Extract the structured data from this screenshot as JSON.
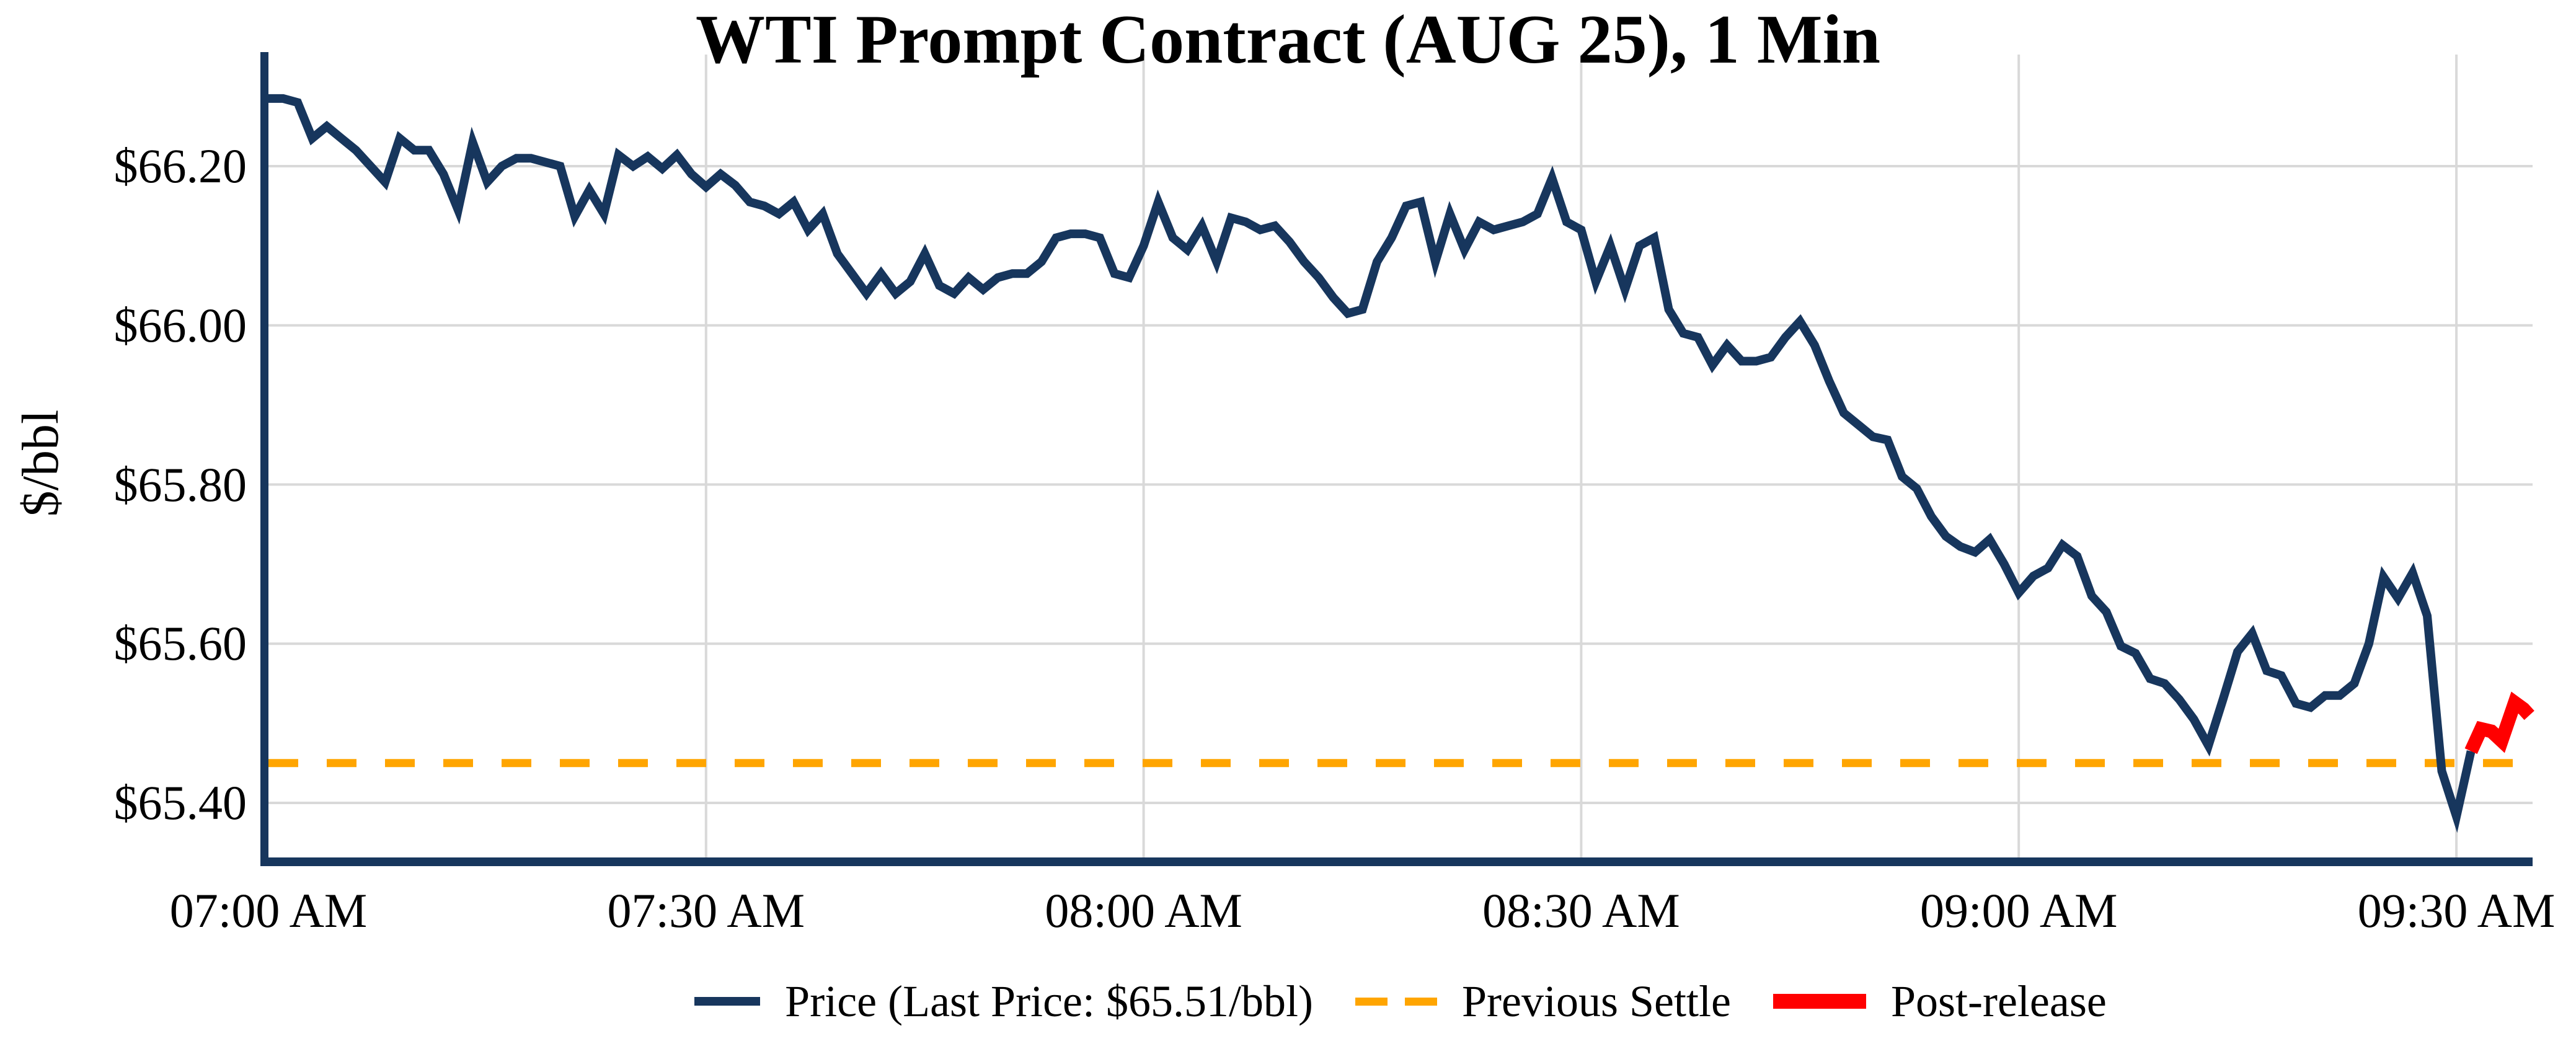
{
  "chart_data": {
    "type": "line",
    "title": "WTI Prompt Contract (AUG 25), 1 Min",
    "ylabel": "$/bbl",
    "grid": true,
    "legend_position": "bottom-center",
    "x_axis": {
      "start": "07:00 AM",
      "end": "09:35 AM",
      "minutes_per_point": 1,
      "ticks": [
        {
          "minute": 0,
          "label": "07:00 AM"
        },
        {
          "minute": 30,
          "label": "07:30 AM"
        },
        {
          "minute": 60,
          "label": "08:00 AM"
        },
        {
          "minute": 90,
          "label": "08:30 AM"
        },
        {
          "minute": 120,
          "label": "09:00 AM"
        },
        {
          "minute": 150,
          "label": "09:30 AM"
        }
      ]
    },
    "y_axis": {
      "range": [
        65.32,
        66.31
      ],
      "ticks": [
        {
          "value": 66.2,
          "label": "$66.20"
        },
        {
          "value": 66.0,
          "label": "$66.00"
        },
        {
          "value": 65.8,
          "label": "$65.80"
        },
        {
          "value": 65.6,
          "label": "$65.60"
        },
        {
          "value": 65.4,
          "label": "$65.40"
        }
      ]
    },
    "series": [
      {
        "name": "Price (Last Price: $65.51/bbl)",
        "type": "line",
        "line_style": "solid",
        "color": "#17365d",
        "start": "07:00 AM",
        "step_minutes": 1,
        "values": [
          66.285,
          66.285,
          66.28,
          66.235,
          66.25,
          66.235,
          66.22,
          66.2,
          66.18,
          66.235,
          66.22,
          66.22,
          66.19,
          66.145,
          66.23,
          66.18,
          66.2,
          66.21,
          66.21,
          66.205,
          66.2,
          66.137,
          66.17,
          66.14,
          66.214,
          66.2,
          66.212,
          66.197,
          66.214,
          66.19,
          66.174,
          66.19,
          66.176,
          66.155,
          66.15,
          66.14,
          66.155,
          66.12,
          66.14,
          66.09,
          66.065,
          66.04,
          66.065,
          66.04,
          66.055,
          66.09,
          66.05,
          66.04,
          66.06,
          66.045,
          66.06,
          66.065,
          66.065,
          66.08,
          66.11,
          66.115,
          66.115,
          66.11,
          66.065,
          66.06,
          66.1,
          66.155,
          66.11,
          66.095,
          66.125,
          66.08,
          66.135,
          66.13,
          66.12,
          66.125,
          66.105,
          66.08,
          66.06,
          66.035,
          66.015,
          66.02,
          66.08,
          66.11,
          66.15,
          66.155,
          66.08,
          66.14,
          66.095,
          66.13,
          66.12,
          66.125,
          66.13,
          66.14,
          66.185,
          66.13,
          66.12,
          66.055,
          66.1,
          66.045,
          66.1,
          66.11,
          66.02,
          65.99,
          65.985,
          65.95,
          65.975,
          65.955,
          65.955,
          65.96,
          65.985,
          66.005,
          65.975,
          65.93,
          65.89,
          65.875,
          65.86,
          65.856,
          65.81,
          65.795,
          65.76,
          65.735,
          65.722,
          65.715,
          65.731,
          65.7,
          65.664,
          65.685,
          65.695,
          65.724,
          65.71,
          65.66,
          65.64,
          65.597,
          65.588,
          65.556,
          65.55,
          65.53,
          65.505,
          65.472,
          65.53,
          65.59,
          65.613,
          65.566,
          65.56,
          65.525,
          65.52,
          65.535,
          65.535,
          65.55,
          65.6,
          65.684,
          65.657,
          65.689,
          65.635,
          65.44,
          65.383,
          65.465
        ]
      },
      {
        "name": "Previous Settle",
        "type": "hline",
        "line_style": "dashed",
        "color": "#ffa500",
        "value": 65.45
      },
      {
        "name": "Post-release",
        "type": "line",
        "line_style": "solid",
        "color": "#ff0000",
        "points_minute_price": [
          [
            151,
            65.465
          ],
          [
            151.7,
            65.493
          ],
          [
            152.4,
            65.49
          ],
          [
            153.1,
            65.478
          ],
          [
            154.0,
            65.526
          ],
          [
            154.6,
            65.518
          ],
          [
            155.0,
            65.51
          ]
        ]
      }
    ],
    "annotations": {
      "last_price": "$65.51/bbl",
      "previous_settle_value": 65.45
    }
  },
  "colors": {
    "price": "#17365d",
    "settle": "#ffa500",
    "post_release": "#ff0000",
    "grid": "#d9d9d9",
    "axis": "#17365d",
    "text": "#000000",
    "background": "#ffffff"
  }
}
